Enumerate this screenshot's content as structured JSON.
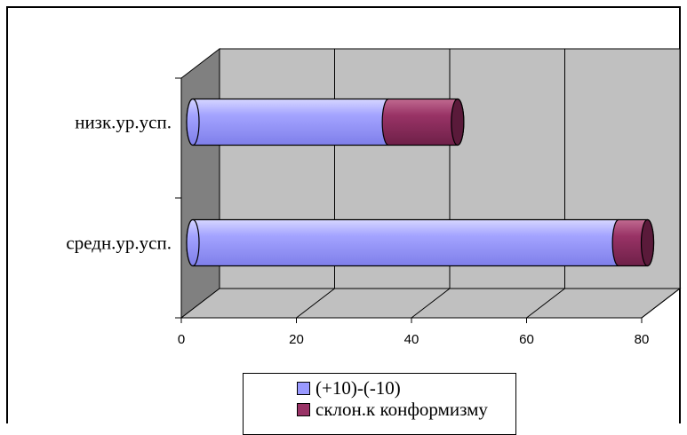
{
  "chart_data": {
    "type": "bar",
    "orientation": "horizontal",
    "three_d": true,
    "stacked": true,
    "categories": [
      "низк.ур.усп.",
      "средн.ур.усп."
    ],
    "series": [
      {
        "name": "(+10)-(-10)",
        "values": [
          34,
          74
        ],
        "color": "#9999ff"
      },
      {
        "name": "склон.к конформизму",
        "values": [
          12,
          5
        ],
        "color": "#993366"
      }
    ],
    "xlim": [
      0,
      80
    ],
    "xticks": [
      0,
      20,
      40,
      60,
      80
    ],
    "grid": true,
    "legend_position": "bottom"
  }
}
